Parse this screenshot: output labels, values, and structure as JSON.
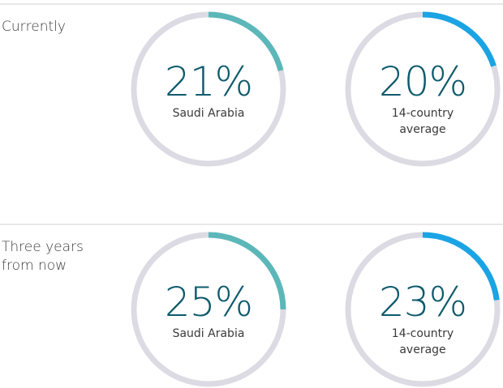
{
  "chart_data": {
    "type": "gauge",
    "rows": [
      {
        "label": "Currently",
        "gauges": [
          {
            "name": "Saudi Arabia",
            "value": 21,
            "value_label": "21%",
            "color": "#5cb7b9"
          },
          {
            "name": "14-country average",
            "value": 20,
            "value_label": "20%",
            "color": "#1aa4e4"
          }
        ]
      },
      {
        "label": "Three years from now",
        "gauges": [
          {
            "name": "Saudi Arabia",
            "value": 25,
            "value_label": "25%",
            "color": "#5cb7b9"
          },
          {
            "name": "14-country average",
            "value": 23,
            "value_label": "23%",
            "color": "#1aa4e4"
          }
        ]
      }
    ]
  }
}
